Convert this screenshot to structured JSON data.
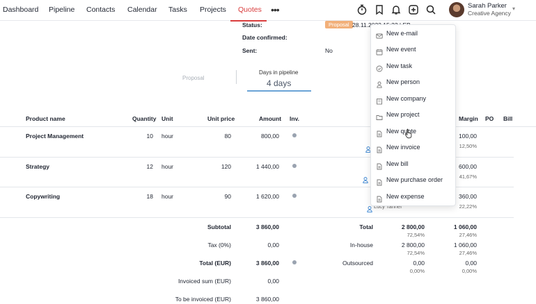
{
  "nav": {
    "items": [
      "Dashboard",
      "Pipeline",
      "Contacts",
      "Calendar",
      "Tasks",
      "Projects",
      "Quotes"
    ],
    "active": "Quotes",
    "more": "•••"
  },
  "toolbar_icons": [
    "timer-icon",
    "bookmark-icon",
    "bell-icon",
    "plus-square-icon",
    "search-icon"
  ],
  "user": {
    "name": "Sarah Parker",
    "org": "Creative Agency"
  },
  "details": {
    "status_label": "Status:",
    "status_badge": "Proposal",
    "status_value": "28.11.2023 15:22 | EB",
    "date_confirmed_label": "Date confirmed:",
    "sent_label": "Sent:",
    "sent_value": "No"
  },
  "pipeline": {
    "stage": "Proposal",
    "title": "Days in pipeline",
    "days": "4 days"
  },
  "table": {
    "headers": {
      "product": "Product name",
      "quantity": "Quantity",
      "unit": "Unit",
      "unit_price": "Unit price",
      "amount": "Amount",
      "inv": "Inv.",
      "margin": "Margin",
      "po": "PO",
      "bill": "Bill"
    },
    "rows": [
      {
        "name": "Project Management",
        "quantity": "10",
        "unit": "hour",
        "unit_price": "80",
        "amount": "800,00",
        "margin": "100,00",
        "margin_pct": "12,50%"
      },
      {
        "name": "Strategy",
        "quantity": "12",
        "unit": "hour",
        "unit_price": "120",
        "amount": "1 440,00",
        "margin": "600,00",
        "margin_pct": "41,67%"
      },
      {
        "name": "Copywriting",
        "quantity": "18",
        "unit": "hour",
        "unit_price": "90",
        "amount": "1 620,00",
        "margin": "360,00",
        "margin_pct": "22,22%",
        "assignee": "Lucy Tanner"
      }
    ]
  },
  "summary": {
    "subtotal_label": "Subtotal",
    "subtotal": "3 860,00",
    "tax_label": "Tax (0%)",
    "tax": "0,00",
    "total_label": "Total (EUR)",
    "total": "3 860,00",
    "invoiced_label": "Invoiced sum (EUR)",
    "invoiced": "0,00",
    "to_invoice_label": "To be invoiced (EUR)",
    "to_invoice": "3 860,00"
  },
  "costs": {
    "total_label": "Total",
    "total_cost": "2 800,00",
    "total_cost_pct": "72,54%",
    "total_margin": "1 060,00",
    "total_margin_pct": "27,46%",
    "inhouse_label": "In-house",
    "inhouse_cost": "2 800,00",
    "inhouse_cost_pct": "72,54%",
    "inhouse_margin": "1 060,00",
    "inhouse_margin_pct": "27,46%",
    "outsourced_label": "Outsourced",
    "outsourced_cost": "0,00",
    "outsourced_cost_pct": "0,00%",
    "outsourced_margin": "0,00",
    "outsourced_margin_pct": "0,00%"
  },
  "dropdown": {
    "items": [
      {
        "label": "New e-mail",
        "icon": "mail-icon"
      },
      {
        "label": "New event",
        "icon": "calendar-icon"
      },
      {
        "label": "New task",
        "icon": "check-circle-icon"
      },
      {
        "label": "New person",
        "icon": "person-icon"
      },
      {
        "label": "New company",
        "icon": "building-icon"
      },
      {
        "label": "New project",
        "icon": "folder-icon"
      },
      {
        "label": "New quote",
        "icon": "document-icon"
      },
      {
        "label": "New invoice",
        "icon": "document-icon"
      },
      {
        "label": "New bill",
        "icon": "document-icon"
      },
      {
        "label": "New purchase order",
        "icon": "document-icon"
      },
      {
        "label": "New expense",
        "icon": "document-icon"
      }
    ]
  }
}
